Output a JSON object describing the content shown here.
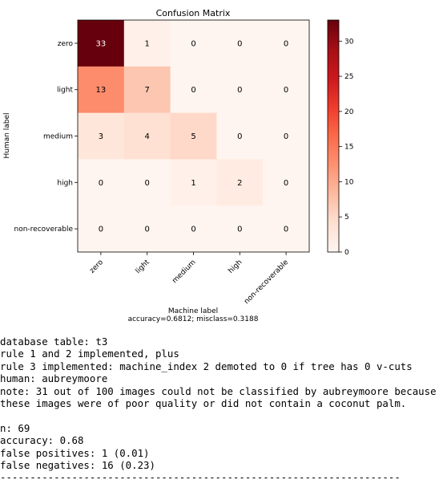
{
  "chart_data": {
    "type": "heatmap",
    "title": "Confusion Matrix",
    "xlabel": "Machine label",
    "xlabel_sub": "accuracy=0.6812; misclass=0.3188",
    "ylabel": "Human label",
    "x_categories": [
      "zero",
      "light",
      "medium",
      "high",
      "non-recoverable"
    ],
    "y_categories": [
      "zero",
      "light",
      "medium",
      "high",
      "non-recoverable"
    ],
    "values": [
      [
        33,
        1,
        0,
        0,
        0
      ],
      [
        13,
        7,
        0,
        0,
        0
      ],
      [
        3,
        4,
        5,
        0,
        0
      ],
      [
        0,
        0,
        1,
        2,
        0
      ],
      [
        0,
        0,
        0,
        0,
        0
      ]
    ],
    "colormap": "Reds",
    "colorbar": {
      "min": 0,
      "max": 33,
      "ticks": [
        "0",
        "5",
        "10",
        "15",
        "20",
        "25",
        "30"
      ]
    },
    "grid": false
  },
  "report": {
    "lines": [
      "database table: t3",
      "rule 1 and 2 implemented, plus",
      "rule 3 implemented: machine_index 2 demoted to 0 if tree has 0 v-cuts",
      "human: aubreymoore",
      "note: 31 out of 100 images could not be classified by aubreymoore because",
      "these images were of poor quality or did not contain a coconut palm.",
      "",
      "n: 69",
      "accuracy: 0.68",
      "false positives: 1 (0.01)",
      "false negatives: 16 (0.23)",
      "-------------------------------------------------------------------"
    ]
  }
}
